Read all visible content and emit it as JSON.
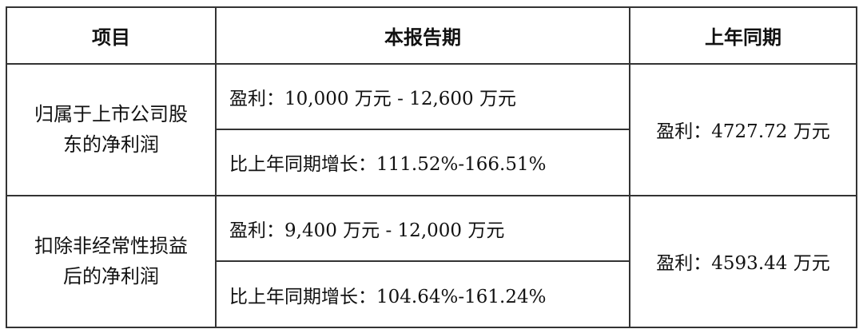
{
  "headers": [
    "项目",
    "本报告期",
    "上年同期"
  ],
  "rows": [
    {
      "item_line1": "归属于上市公司股",
      "item_line2": "东的净利润",
      "current_profit": "盈利：10,000 万元 - 12,600 万元",
      "current_growth": "比上年同期增长：111.52%-166.51%",
      "prior": "盈利：4727.72 万元"
    },
    {
      "item_line1": "扣除非经常性损益",
      "item_line2": "后的净利润",
      "current_profit": "盈利：9,400 万元 - 12,000 万元",
      "current_growth": "比上年同期增长：104.64%-161.24%",
      "prior": "盈利：4593.44 万元"
    }
  ]
}
